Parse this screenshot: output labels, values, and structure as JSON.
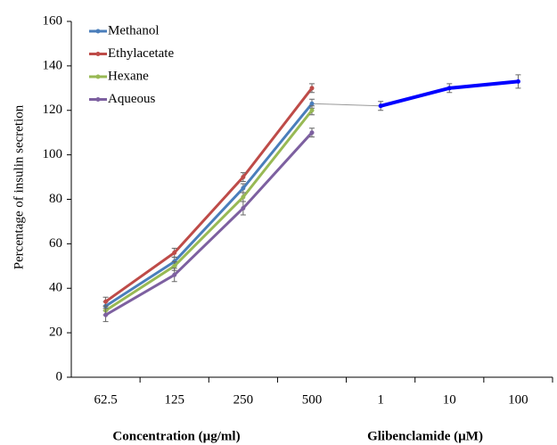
{
  "chart_data": {
    "type": "line",
    "ylabel": "Percentage of insulin secretion",
    "xlabels": [
      "Concentration (µg/ml)",
      "Glibenclamide (µM)"
    ],
    "categories": [
      "62.5",
      "125",
      "250",
      "500",
      "1",
      "10",
      "100"
    ],
    "ylim": [
      0,
      160
    ],
    "yticks": [
      0,
      20,
      40,
      60,
      80,
      100,
      120,
      140,
      160
    ],
    "legend": "upper left",
    "series": [
      {
        "name": "Methanol",
        "color": "#4a7ebb",
        "values": [
          32,
          52,
          85,
          123,
          null,
          null,
          null
        ],
        "errors": [
          2,
          2,
          2,
          2,
          null,
          null,
          null
        ]
      },
      {
        "name": "Ethylacetate",
        "color": "#be4b48",
        "values": [
          34,
          56,
          90,
          130,
          null,
          null,
          null
        ],
        "errors": [
          2,
          2,
          2,
          2,
          null,
          null,
          null
        ]
      },
      {
        "name": "Hexane",
        "color": "#98b954",
        "values": [
          30,
          50,
          81,
          120,
          null,
          null,
          null
        ],
        "errors": [
          2,
          2,
          2,
          2,
          null,
          null,
          null
        ]
      },
      {
        "name": "Aqueous",
        "color": "#7d60a0",
        "values": [
          28,
          46,
          76,
          110,
          null,
          null,
          null
        ],
        "errors": [
          3,
          3,
          3,
          2,
          null,
          null,
          null
        ]
      },
      {
        "color": "#0000ff",
        "values": [
          null,
          null,
          null,
          null,
          122,
          130,
          133
        ],
        "errors": [
          null,
          null,
          null,
          null,
          2,
          2,
          3
        ]
      }
    ]
  }
}
